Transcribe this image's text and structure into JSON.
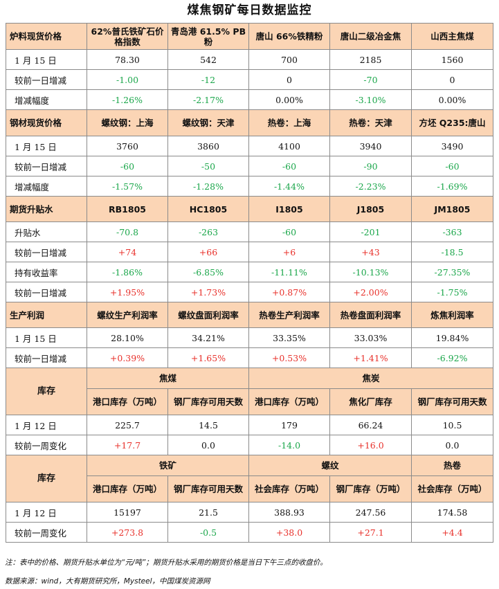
{
  "title": "煤焦钢矿每日数据监控",
  "colors": {
    "header_bg": "#fbd5b5",
    "decrease": "#1aa64a",
    "increase": "#e8302a",
    "border": "#8a8a8a"
  },
  "s1": {
    "header": [
      "炉料现货价格",
      "62%普氏铁矿石价格指数",
      "青岛港 61.5% PB 粉",
      "唐山 66%铁精粉",
      "唐山二级冶金焦",
      "山西主焦煤"
    ],
    "rows": [
      [
        "1 月 15 日",
        "78.30",
        "542",
        "700",
        "2185",
        "1560"
      ],
      [
        "较前一日增减",
        "-1.00",
        "-12",
        "0",
        "-70",
        "0"
      ],
      [
        "增减幅度",
        "-1.26%",
        "-2.17%",
        "0.00%",
        "-3.10%",
        "0.00%"
      ]
    ]
  },
  "s2": {
    "header": [
      "钢材现货价格",
      "螺纹钢：上海",
      "螺纹钢：天津",
      "热卷：上海",
      "热卷：天津",
      "方坯 Q235:唐山"
    ],
    "rows": [
      [
        "1 月 15 日",
        "3760",
        "3860",
        "4100",
        "3940",
        "3490"
      ],
      [
        "较前一日增减",
        "-60",
        "-50",
        "-60",
        "-90",
        "-60"
      ],
      [
        "增减幅度",
        "-1.57%",
        "-1.28%",
        "-1.44%",
        "-2.23%",
        "-1.69%"
      ]
    ]
  },
  "s3": {
    "header": [
      "期货升贴水",
      "RB1805",
      "HC1805",
      "I1805",
      "J1805",
      "JM1805"
    ],
    "rows": [
      [
        "升贴水",
        "-70.8",
        "-263",
        "-60",
        "-201",
        "-363"
      ],
      [
        "较前一日增减",
        "+74",
        "+66",
        "+6",
        "+43",
        "-18.5"
      ],
      [
        "持有收益率",
        "-1.86%",
        "-6.85%",
        "-11.11%",
        "-10.13%",
        "-27.35%"
      ],
      [
        "较前一日增减",
        "+1.95%",
        "+1.73%",
        "+0.87%",
        "+2.00%",
        "-1.75%"
      ]
    ]
  },
  "s4": {
    "header": [
      "生产利润",
      "螺纹生产利润率",
      "螺纹盘面利润率",
      "热卷生产利润率",
      "热卷盘面利润率",
      "炼焦利润率"
    ],
    "rows": [
      [
        "1 月 15 日",
        "28.10%",
        "34.21%",
        "33.35%",
        "33.03%",
        "19.84%"
      ],
      [
        "较前一日增减",
        "+0.39%",
        "+1.65%",
        "+0.53%",
        "+1.41%",
        "-6.92%"
      ]
    ]
  },
  "s5": {
    "label": "库存",
    "groups": [
      "焦煤",
      "焦炭"
    ],
    "sub": [
      "港口库存（万吨）",
      "钢厂库存可用天数",
      "港口库存（万吨）",
      "焦化厂库存",
      "钢厂库存可用天数"
    ],
    "rows": [
      [
        "1 月 12 日",
        "225.7",
        "14.5",
        "179",
        "66.24",
        "10.5"
      ],
      [
        "较前一周变化",
        "+17.7",
        "0.0",
        "-14.0",
        "+16.0",
        "0.0"
      ]
    ]
  },
  "s6": {
    "label": "库存",
    "groups": [
      "铁矿",
      "螺纹",
      "热卷"
    ],
    "sub": [
      "港口库存（万吨）",
      "钢厂库存可用天数",
      "社会库存（万吨）",
      "钢厂库存（万吨）",
      "社会库存（万吨）"
    ],
    "rows": [
      [
        "1 月 12 日",
        "15197",
        "21.5",
        "388.93",
        "247.56",
        "174.58"
      ],
      [
        "较前一周变化",
        "+273.8",
        "-0.5",
        "+38.0",
        "+27.1",
        "+4.4"
      ]
    ]
  },
  "notes": {
    "unit": "注：表中的价格、期货升贴水单位为“元/吨”；期货升贴水采用的期货价格是当日下午三点的收盘价。",
    "source": "数据来源：wind，大有期货研究所，Mysteel，中国煤炭资源网"
  }
}
